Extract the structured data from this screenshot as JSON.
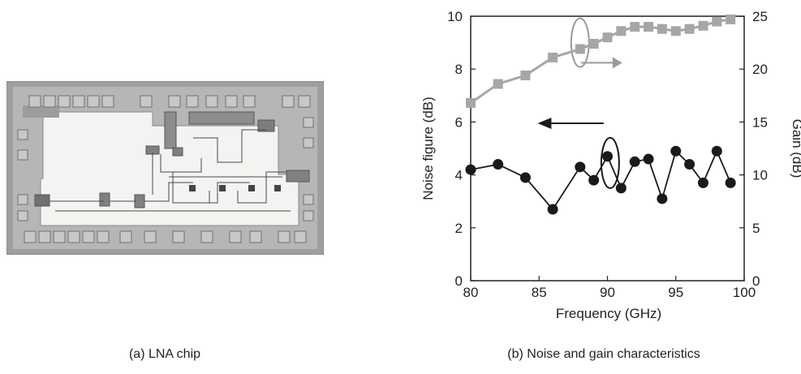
{
  "figure": {
    "caption_a": "(a) LNA chip",
    "caption_b": "(b) Noise and gain characteristics"
  },
  "chart_data": {
    "type": "line",
    "xlabel": "Frequency (GHz)",
    "ylabel": "Noise figure (dB)",
    "y2label": "Gain (dB)",
    "xlim": [
      80,
      100
    ],
    "ylim": [
      0,
      10
    ],
    "y2lim": [
      0,
      25
    ],
    "xticks": [
      80,
      85,
      90,
      95,
      100
    ],
    "yticks": [
      0,
      2,
      4,
      6,
      8,
      10
    ],
    "y2ticks": [
      0,
      5,
      10,
      15,
      20,
      25
    ],
    "grid": false,
    "series": [
      {
        "axis": "left",
        "marker": "circle",
        "color": "#1a1a1a",
        "x": [
          80,
          82,
          84,
          86,
          88,
          89,
          90,
          91,
          92,
          93,
          94,
          95,
          96,
          97,
          98,
          99
        ],
        "y": [
          4.2,
          4.4,
          3.9,
          2.7,
          4.3,
          3.8,
          4.7,
          3.5,
          4.5,
          4.6,
          3.1,
          4.9,
          4.4,
          3.7,
          4.9,
          3.7
        ]
      },
      {
        "axis": "right",
        "marker": "square",
        "color": "#a6a6a6",
        "x": [
          80,
          82,
          84,
          86,
          88,
          89,
          90,
          91,
          92,
          93,
          94,
          95,
          96,
          97,
          98,
          99
        ],
        "y": [
          16.8,
          18.6,
          19.4,
          21.1,
          21.9,
          22.4,
          23.0,
          23.6,
          24.0,
          24.0,
          23.8,
          23.6,
          23.8,
          24.1,
          24.5,
          24.7
        ]
      }
    ],
    "annotations": [
      {
        "target": "right",
        "description": "ellipse around gain markers near 88 GHz with arrow pointing right"
      },
      {
        "target": "left",
        "description": "ellipse around noise-figure markers near 90 GHz with arrow pointing left"
      }
    ]
  }
}
